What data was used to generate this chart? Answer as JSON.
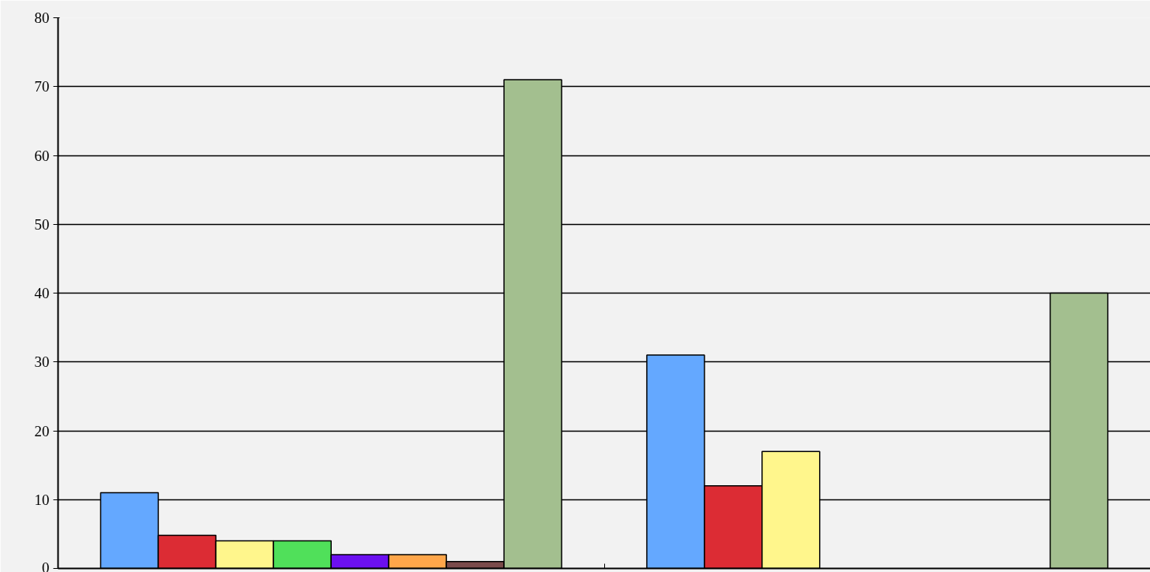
{
  "chart_data": {
    "type": "bar",
    "categories": [
      null,
      null
    ],
    "series": [
      {
        "color": "#64a8ff",
        "values": [
          11,
          31
        ]
      },
      {
        "color": "#dc2c34",
        "values": [
          4.8,
          12
        ]
      },
      {
        "color": "#fff68c",
        "values": [
          4,
          17
        ]
      },
      {
        "color": "#50e05a",
        "values": [
          4,
          null
        ]
      },
      {
        "color": "#6c10f0",
        "values": [
          2,
          null
        ]
      },
      {
        "color": "#ffa64a",
        "values": [
          2,
          null
        ]
      },
      {
        "color": "#7a4a4a",
        "values": [
          1,
          null
        ]
      },
      {
        "color": "#a3bf8f",
        "values": [
          71,
          40
        ]
      }
    ],
    "ylim": [
      0,
      80
    ],
    "yticks": [
      0,
      10,
      20,
      30,
      40,
      50,
      60,
      70,
      80
    ],
    "grid": "y",
    "tick_labels": "y"
  }
}
